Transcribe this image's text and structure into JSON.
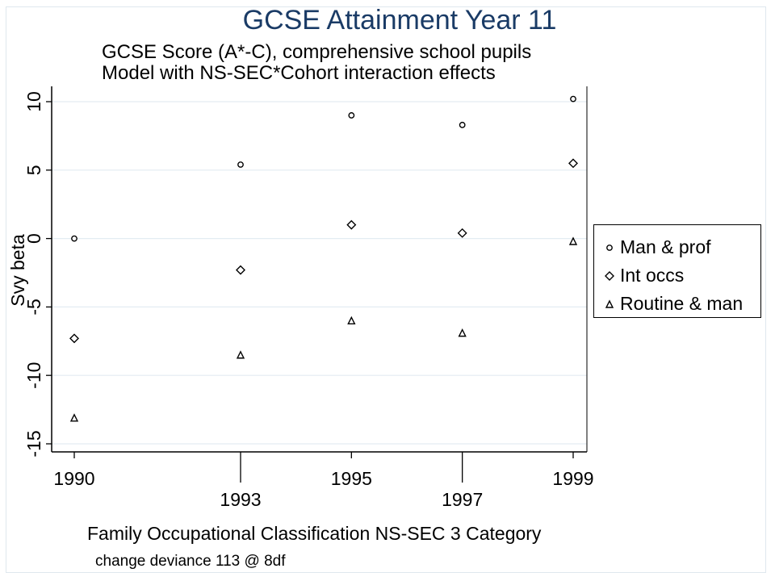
{
  "chart_data": {
    "type": "scatter",
    "title": "GCSE Attainment Year 11",
    "subtitle_lines": [
      "GCSE Score (A*-C), comprehensive school pupils",
      "Model with NS-SEC*Cohort interaction effects"
    ],
    "xlabel": "Family Occupational Classification NS-SEC 3 Category",
    "ylabel": "Svy beta",
    "note": "change deviance 113 @ 8df",
    "x": [
      1990,
      1993,
      1995,
      1997,
      1999
    ],
    "x_tick_labels": [
      {
        "value": 1990,
        "label": "1990",
        "row": "upper"
      },
      {
        "value": 1993,
        "label": "1993",
        "row": "lower"
      },
      {
        "value": 1995,
        "label": "1995",
        "row": "upper"
      },
      {
        "value": 1997,
        "label": "1997",
        "row": "lower"
      },
      {
        "value": 1999,
        "label": "1999",
        "row": "upper"
      }
    ],
    "y_ticks": [
      10,
      5,
      0,
      -5,
      -10,
      -15
    ],
    "y_tick_labels": [
      "10",
      "5",
      "0",
      "-5",
      "-10",
      "-15"
    ],
    "xlim": [
      1990,
      1999
    ],
    "ylim": [
      -15,
      10
    ],
    "grid": true,
    "legend_position": "right",
    "series": [
      {
        "name": "Man & prof",
        "marker": "circle",
        "values": [
          0,
          5.4,
          9.0,
          8.3,
          10.2
        ]
      },
      {
        "name": "Int occs",
        "marker": "diamond",
        "values": [
          -7.3,
          -2.3,
          1.0,
          0.4,
          5.5
        ]
      },
      {
        "name": "Routine & man",
        "marker": "triangle",
        "values": [
          -13.1,
          -8.5,
          -6.0,
          -6.9,
          -0.2
        ]
      }
    ]
  }
}
